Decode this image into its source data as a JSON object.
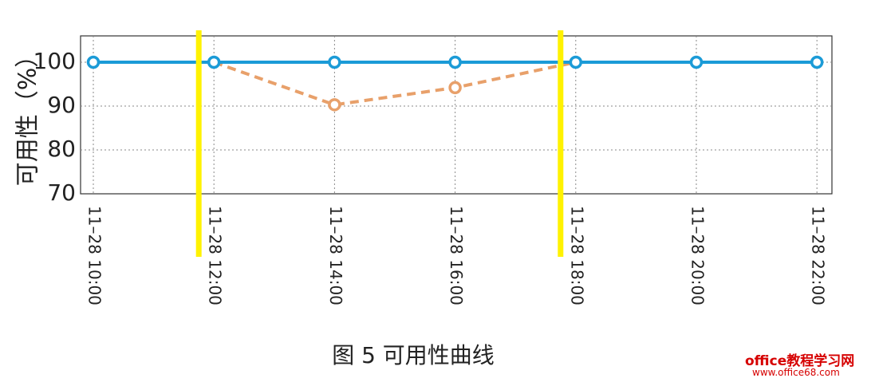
{
  "chart_data": {
    "type": "line",
    "title": "",
    "xlabel": "",
    "ylabel": "可用性（%）",
    "x": [
      "11–28 10:00",
      "11–28 12:00",
      "11–28 14:00",
      "11–28 16:00",
      "11–28 18:00",
      "11–28 20:00",
      "11–28 22:00"
    ],
    "yticks": [
      "70",
      "80",
      "90",
      "100"
    ],
    "ylim": [
      70,
      106
    ],
    "grid": true,
    "series": [
      {
        "values": [
          100,
          100,
          100,
          100,
          100,
          100,
          100
        ],
        "color": "#1b9bd7",
        "style": "solid"
      },
      {
        "values": [
          null,
          100,
          90.3,
          94.2,
          100,
          null,
          null
        ],
        "color": "#e8a06a",
        "style": "dashed"
      }
    ],
    "markers": {
      "vertical_lines_at": [
        "11–28 12:00",
        "11–28 18:00"
      ],
      "color": "#fff200"
    }
  },
  "caption": "图 5  可用性曲线",
  "watermark": {
    "title": "office教程学习网",
    "url": "www.office68.com"
  }
}
